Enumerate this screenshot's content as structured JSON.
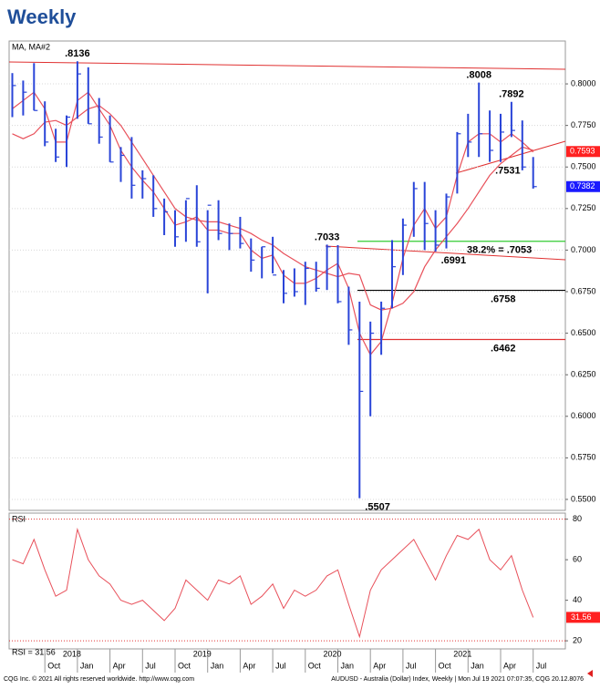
{
  "title": "Weekly",
  "chart_data": {
    "type": "ohlc",
    "indicator_label": "MA, MA#2",
    "color": "#2a45d8",
    "categories": [
      null,
      null,
      null,
      "Oct",
      null,
      null,
      "Jan",
      null,
      null,
      "Apr",
      null,
      null,
      "Jul",
      null,
      null,
      "Oct",
      null,
      null,
      "Jan",
      null,
      null,
      "Apr",
      null,
      null,
      "Jul",
      null,
      null,
      "Oct",
      null,
      null,
      "Jan",
      null,
      null,
      "Apr",
      null,
      null,
      "Jul",
      null,
      null,
      "Oct",
      null,
      null,
      "Jan",
      null,
      null,
      "Apr",
      null,
      null,
      "Jul"
    ],
    "years": [
      "2018",
      "2019",
      "2020",
      "2021"
    ],
    "high": [
      0.8065,
      0.802,
      0.8125,
      0.7895,
      0.773,
      0.781,
      0.8136,
      0.81,
      0.7915,
      0.781,
      0.762,
      0.768,
      0.748,
      0.745,
      0.731,
      0.724,
      0.73,
      0.739,
      0.724,
      0.73,
      0.716,
      0.72,
      0.707,
      0.702,
      0.708,
      0.688,
      0.689,
      0.693,
      0.693,
      0.7033,
      0.703,
      0.678,
      0.669,
      0.657,
      0.669,
      0.706,
      0.719,
      0.741,
      0.741,
      0.724,
      0.734,
      0.771,
      0.782,
      0.8008,
      0.784,
      0.782,
      0.7892,
      0.778,
      0.756
    ],
    "low": [
      0.78,
      0.781,
      0.784,
      0.7625,
      0.753,
      0.75,
      0.779,
      0.776,
      0.764,
      0.753,
      0.741,
      0.731,
      0.731,
      0.72,
      0.709,
      0.702,
      0.705,
      0.702,
      0.674,
      0.706,
      0.7,
      0.701,
      0.687,
      0.683,
      0.686,
      0.668,
      0.672,
      0.667,
      0.675,
      0.676,
      0.668,
      0.643,
      0.5507,
      0.6,
      0.637,
      0.665,
      0.685,
      0.708,
      0.7,
      0.6991,
      0.701,
      0.734,
      0.756,
      0.756,
      0.7531,
      0.753,
      0.768,
      0.748,
      0.737
    ],
    "close": [
      0.799,
      0.795,
      0.784,
      0.765,
      0.756,
      0.78,
      0.806,
      0.776,
      0.768,
      0.753,
      0.757,
      0.739,
      0.743,
      0.725,
      0.723,
      0.708,
      0.731,
      0.705,
      0.727,
      0.71,
      0.71,
      0.704,
      0.694,
      0.702,
      0.685,
      0.674,
      0.675,
      0.689,
      0.677,
      0.702,
      0.669,
      0.652,
      0.615,
      0.65,
      0.665,
      0.69,
      0.715,
      0.737,
      0.716,
      0.703,
      0.732,
      0.77,
      0.765,
      0.77,
      0.76,
      0.771,
      0.772,
      0.75,
      0.7382
    ],
    "moving_averages": [
      {
        "color": "#e8505a",
        "values": [
          0.785,
          0.79,
          0.795,
          0.785,
          0.765,
          0.765,
          0.79,
          0.795,
          0.785,
          0.775,
          0.76,
          0.75,
          0.742,
          0.735,
          0.725,
          0.715,
          0.717,
          0.72,
          0.712,
          0.712,
          0.71,
          0.71,
          0.7,
          0.695,
          0.697,
          0.685,
          0.68,
          0.68,
          0.683,
          0.688,
          0.692,
          0.677,
          0.65,
          0.637,
          0.645,
          0.668,
          0.695,
          0.715,
          0.725,
          0.713,
          0.72,
          0.745,
          0.765,
          0.77,
          0.77,
          0.765,
          0.77,
          0.765,
          0.759
        ]
      },
      {
        "color": "#e8505a",
        "values": [
          0.77,
          0.767,
          0.77,
          0.777,
          0.778,
          0.775,
          0.78,
          0.785,
          0.787,
          0.782,
          0.775,
          0.765,
          0.755,
          0.745,
          0.735,
          0.725,
          0.72,
          0.718,
          0.717,
          0.717,
          0.715,
          0.713,
          0.71,
          0.706,
          0.703,
          0.698,
          0.694,
          0.69,
          0.688,
          0.686,
          0.684,
          0.686,
          0.685,
          0.667,
          0.664,
          0.665,
          0.668,
          0.675,
          0.69,
          0.7,
          0.708,
          0.716,
          0.725,
          0.735,
          0.745,
          0.752,
          0.757,
          0.762,
          0.76
        ]
      }
    ],
    "ylim": [
      0.5434,
      0.8258
    ],
    "yticks": [
      {
        "value": 0.55,
        "label": "0.5500"
      },
      {
        "value": 0.575,
        "label": "0.5750"
      },
      {
        "value": 0.6,
        "label": "0.6000"
      },
      {
        "value": 0.625,
        "label": "0.6250"
      },
      {
        "value": 0.65,
        "label": "0.6500"
      },
      {
        "value": 0.675,
        "label": "0.6750"
      },
      {
        "value": 0.7,
        "label": "0.7000"
      },
      {
        "value": 0.725,
        "label": "0.7250"
      },
      {
        "value": 0.75,
        "label": "0.7500"
      },
      {
        "value": 0.775,
        "label": "0.7750"
      },
      {
        "value": 0.8,
        "label": "0.8000"
      }
    ],
    "grid": true,
    "annotations": [
      {
        "label": ".8136",
        "value": 0.8136
      },
      {
        "label": ".8008",
        "value": 0.8008
      },
      {
        "label": ".7892",
        "value": 0.7892
      },
      {
        "label": ".7531",
        "value": 0.7531
      },
      {
        "label": ".7033",
        "value": 0.7033
      },
      {
        "label": ".6991",
        "value": 0.6991
      },
      {
        "label": ".5507",
        "value": 0.5507
      }
    ],
    "levels": [
      {
        "label": "38.2% = .7053",
        "value": 0.7053,
        "color": "#33cc33"
      },
      {
        "label": ".6758",
        "value": 0.6758,
        "color": "#000000"
      },
      {
        "label": ".6462",
        "value": 0.6462,
        "color": "#e03030"
      }
    ],
    "price_flags": [
      {
        "label": "0.7593",
        "value": 0.7593,
        "color": "#ff2020"
      },
      {
        "label": "0.7382",
        "value": 0.7382,
        "color": "#1a1aff"
      }
    ],
    "indicator": {
      "type": "line",
      "title": "RSI",
      "value_label": "RSI = 31.56",
      "last": {
        "label": "31.56",
        "value": 31.56
      },
      "color": "#e8505a",
      "values": [
        60,
        58,
        70,
        55,
        42,
        45,
        75,
        60,
        52,
        48,
        40,
        38,
        40,
        35,
        30,
        36,
        50,
        45,
        40,
        50,
        48,
        52,
        38,
        42,
        48,
        36,
        45,
        42,
        45,
        52,
        55,
        38,
        22,
        45,
        55,
        60,
        65,
        70,
        60,
        50,
        62,
        72,
        70,
        75,
        60,
        55,
        62,
        45,
        31.56
      ],
      "ylim": [
        16,
        83
      ],
      "yticks": [
        20,
        40,
        60,
        80
      ],
      "reference_lines": [
        20,
        80
      ]
    }
  },
  "footer": {
    "left": "CQG Inc. © 2021 All rights reserved worldwide. http://www.cqg.com",
    "right": "AUDUSD - Australia (Dollar) Index, Weekly | Mon Jul 19 2021 07:07:35, CQG 20.12.8076"
  }
}
